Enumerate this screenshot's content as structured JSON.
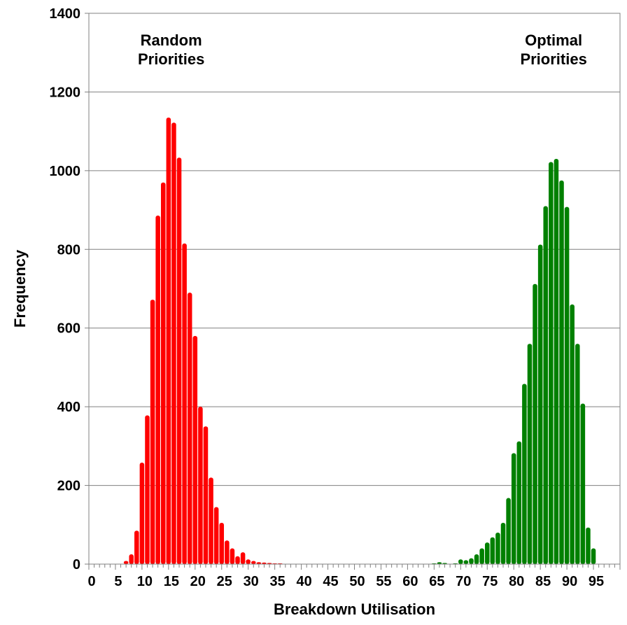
{
  "chart_data": {
    "type": "bar",
    "xlabel": "Breakdown Utilisation",
    "ylabel": "Frequency",
    "xlim": [
      0,
      100
    ],
    "ylim": [
      0,
      1400
    ],
    "x_ticks": [
      0,
      5,
      10,
      15,
      20,
      25,
      30,
      35,
      40,
      45,
      50,
      55,
      60,
      65,
      70,
      75,
      80,
      85,
      90,
      95
    ],
    "y_ticks": [
      0,
      200,
      400,
      600,
      800,
      1000,
      1200,
      1400
    ],
    "grid": true,
    "annotations": [
      {
        "lines": [
          "Random",
          "Priorities"
        ],
        "x": 15.5,
        "y": 1300
      },
      {
        "lines": [
          "Optimal",
          "Priorities"
        ],
        "x": 87.5,
        "y": 1300
      }
    ],
    "series": [
      {
        "color": "#ff0000",
        "x": [
          7,
          8,
          9,
          10,
          11,
          12,
          13,
          14,
          15,
          16,
          17,
          18,
          19,
          20,
          21,
          22,
          23,
          24,
          25,
          26,
          27,
          28,
          29,
          30,
          31,
          32,
          33,
          34,
          35,
          36,
          37
        ],
        "values": [
          8,
          25,
          85,
          258,
          378,
          672,
          886,
          970,
          1135,
          1122,
          1033,
          815,
          690,
          580,
          400,
          350,
          220,
          145,
          105,
          60,
          40,
          20,
          30,
          12,
          8,
          5,
          4,
          3,
          2,
          2,
          1
        ]
      },
      {
        "color": "#008000",
        "x": [
          65,
          66,
          67,
          68,
          69,
          70,
          71,
          72,
          73,
          74,
          75,
          76,
          77,
          78,
          79,
          80,
          81,
          82,
          83,
          84,
          85,
          86,
          87,
          88,
          89,
          90,
          91,
          92,
          93,
          94,
          95
        ],
        "values": [
          2,
          5,
          3,
          0,
          2,
          12,
          10,
          15,
          25,
          40,
          55,
          68,
          80,
          105,
          168,
          282,
          312,
          458,
          560,
          712,
          812,
          910,
          1022,
          1030,
          975,
          908,
          660,
          560,
          408,
          93,
          40
        ]
      }
    ]
  }
}
